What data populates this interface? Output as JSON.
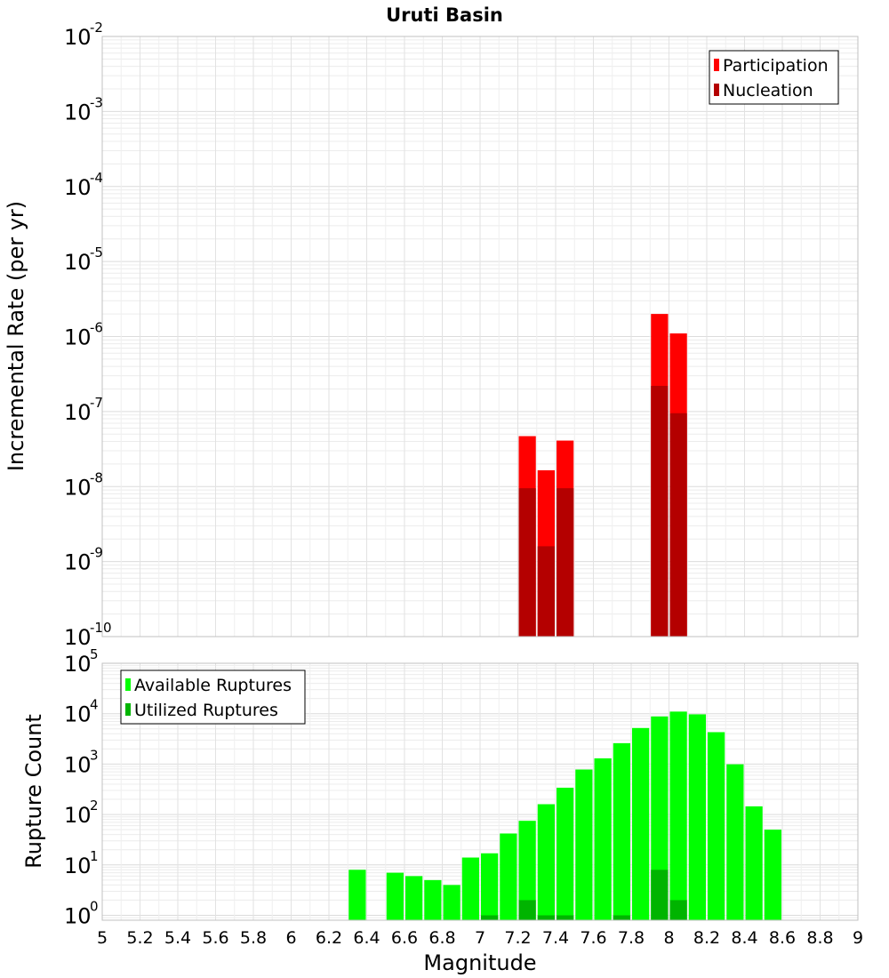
{
  "chart_data": [
    {
      "type": "bar",
      "title": "Uruti Basin",
      "ylabel": "Incremental Rate (per yr)",
      "yscale": "log",
      "ylim": [
        1e-10,
        0.01
      ],
      "xlim": [
        5,
        9
      ],
      "bar_width": 0.1,
      "grid": true,
      "legend_position": "top-right",
      "series": [
        {
          "name": "Participation",
          "color": "#ff0000",
          "x": [
            7.25,
            7.35,
            7.45,
            7.95,
            8.05
          ],
          "values": [
            4.7e-08,
            1.65e-08,
            4.1e-08,
            2e-06,
            1.1e-06
          ]
        },
        {
          "name": "Nucleation",
          "color": "#b40000",
          "x": [
            7.25,
            7.35,
            7.45,
            7.95,
            8.05
          ],
          "values": [
            9.5e-09,
            1.6e-09,
            9.5e-09,
            2.2e-07,
            9.5e-08
          ]
        }
      ]
    },
    {
      "type": "bar",
      "xlabel": "Magnitude",
      "ylabel": "Rupture Count",
      "yscale": "log",
      "ylim": [
        0.8,
        100000.0
      ],
      "xlim": [
        5,
        9
      ],
      "bar_width": 0.1,
      "grid": true,
      "legend_position": "top-left",
      "x_ticks": [
        "5",
        "5.2",
        "5.4",
        "5.6",
        "5.8",
        "6",
        "6.2",
        "6.4",
        "6.6",
        "6.8",
        "7",
        "7.2",
        "7.4",
        "7.6",
        "7.8",
        "8",
        "8.2",
        "8.4",
        "8.6",
        "8.8",
        "9"
      ],
      "series": [
        {
          "name": "Available Ruptures",
          "color": "#00ff00",
          "x": [
            6.35,
            6.55,
            6.65,
            6.75,
            6.85,
            6.95,
            7.05,
            7.15,
            7.25,
            7.35,
            7.45,
            7.55,
            7.65,
            7.75,
            7.85,
            7.95,
            8.05,
            8.15,
            8.25,
            8.35,
            8.45,
            8.55
          ],
          "values": [
            8,
            7,
            6,
            5,
            4,
            14,
            17,
            42,
            75,
            160,
            340,
            780,
            1300,
            2600,
            5200,
            8800,
            11000,
            9700,
            4300,
            990,
            145,
            50
          ]
        },
        {
          "name": "Utilized Ruptures",
          "color": "#00b400",
          "x": [
            7.05,
            7.25,
            7.35,
            7.45,
            7.75,
            7.95,
            8.05
          ],
          "values": [
            1,
            2,
            1,
            1,
            1,
            8,
            2
          ]
        }
      ]
    }
  ]
}
